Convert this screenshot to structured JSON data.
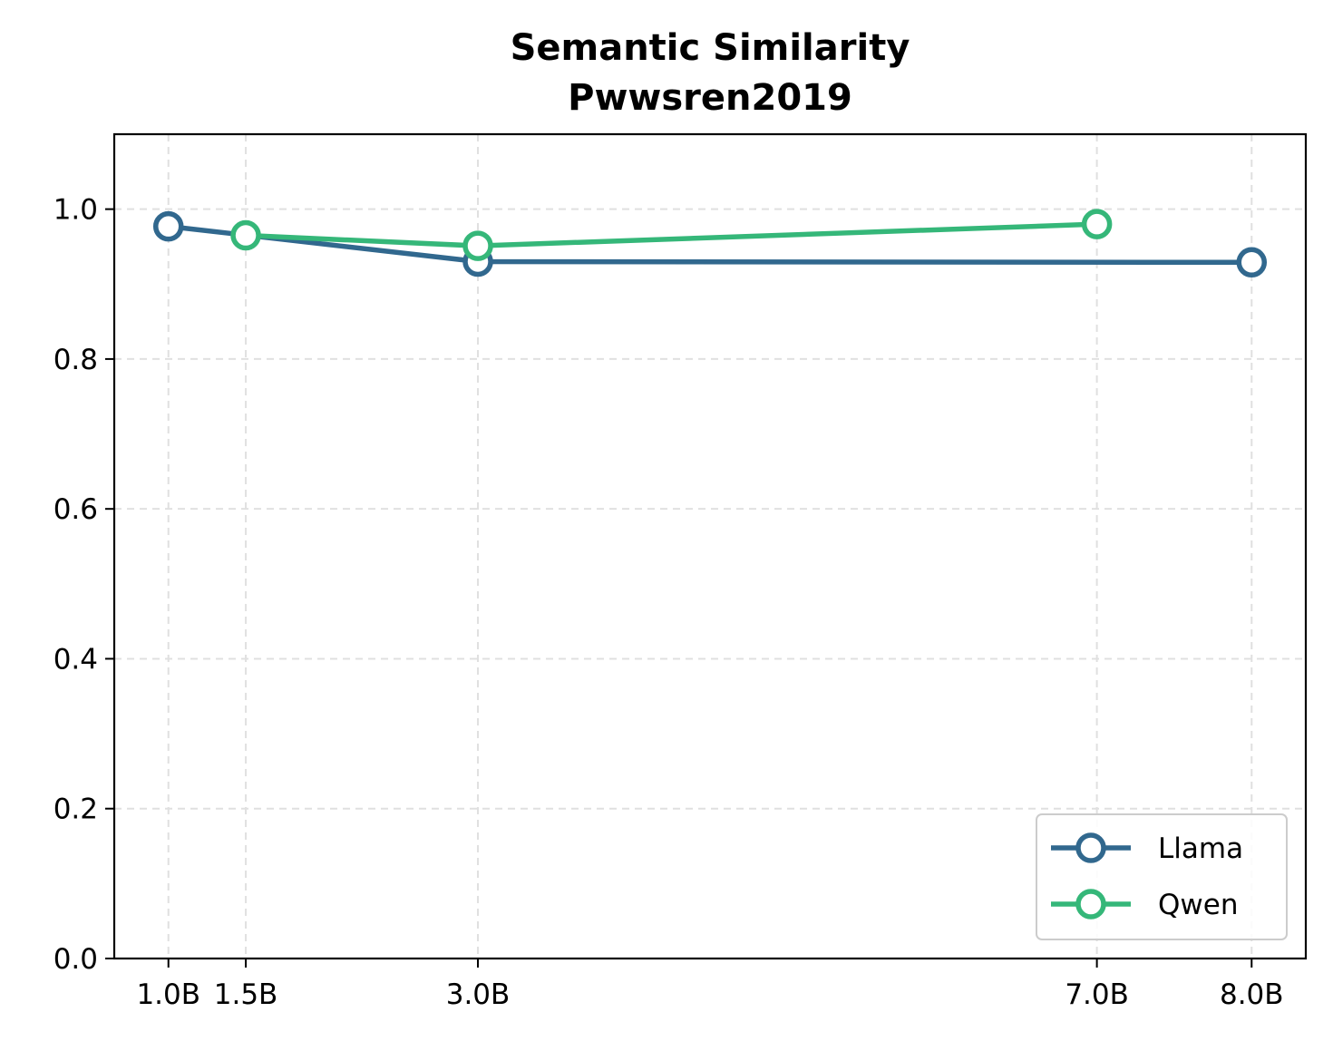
{
  "chart_data": {
    "type": "line",
    "title": "Semantic Similarity",
    "subtitle": "Pwwsren2019",
    "xlabel": "",
    "ylabel": "",
    "x_values": [
      1.0,
      1.5,
      3.0,
      7.0,
      8.0
    ],
    "x_tick_labels": [
      "1.0B",
      "1.5B",
      "3.0B",
      "7.0B",
      "8.0B"
    ],
    "xlim": [
      0.65,
      8.35
    ],
    "ylim": [
      0.0,
      1.1
    ],
    "y_ticks": [
      0.0,
      0.2,
      0.4,
      0.6,
      0.8,
      1.0
    ],
    "y_tick_labels": [
      "0.0",
      "0.2",
      "0.4",
      "0.6",
      "0.8",
      "1.0"
    ],
    "grid": true,
    "legend_position": "lower-right",
    "series": [
      {
        "name": "Llama",
        "color": "#31688e",
        "x": [
          1.0,
          3.0,
          8.0
        ],
        "y": [
          0.977,
          0.93,
          0.929
        ]
      },
      {
        "name": "Qwen",
        "color": "#35b779",
        "x": [
          1.5,
          3.0,
          7.0
        ],
        "y": [
          0.965,
          0.951,
          0.98
        ]
      }
    ]
  }
}
